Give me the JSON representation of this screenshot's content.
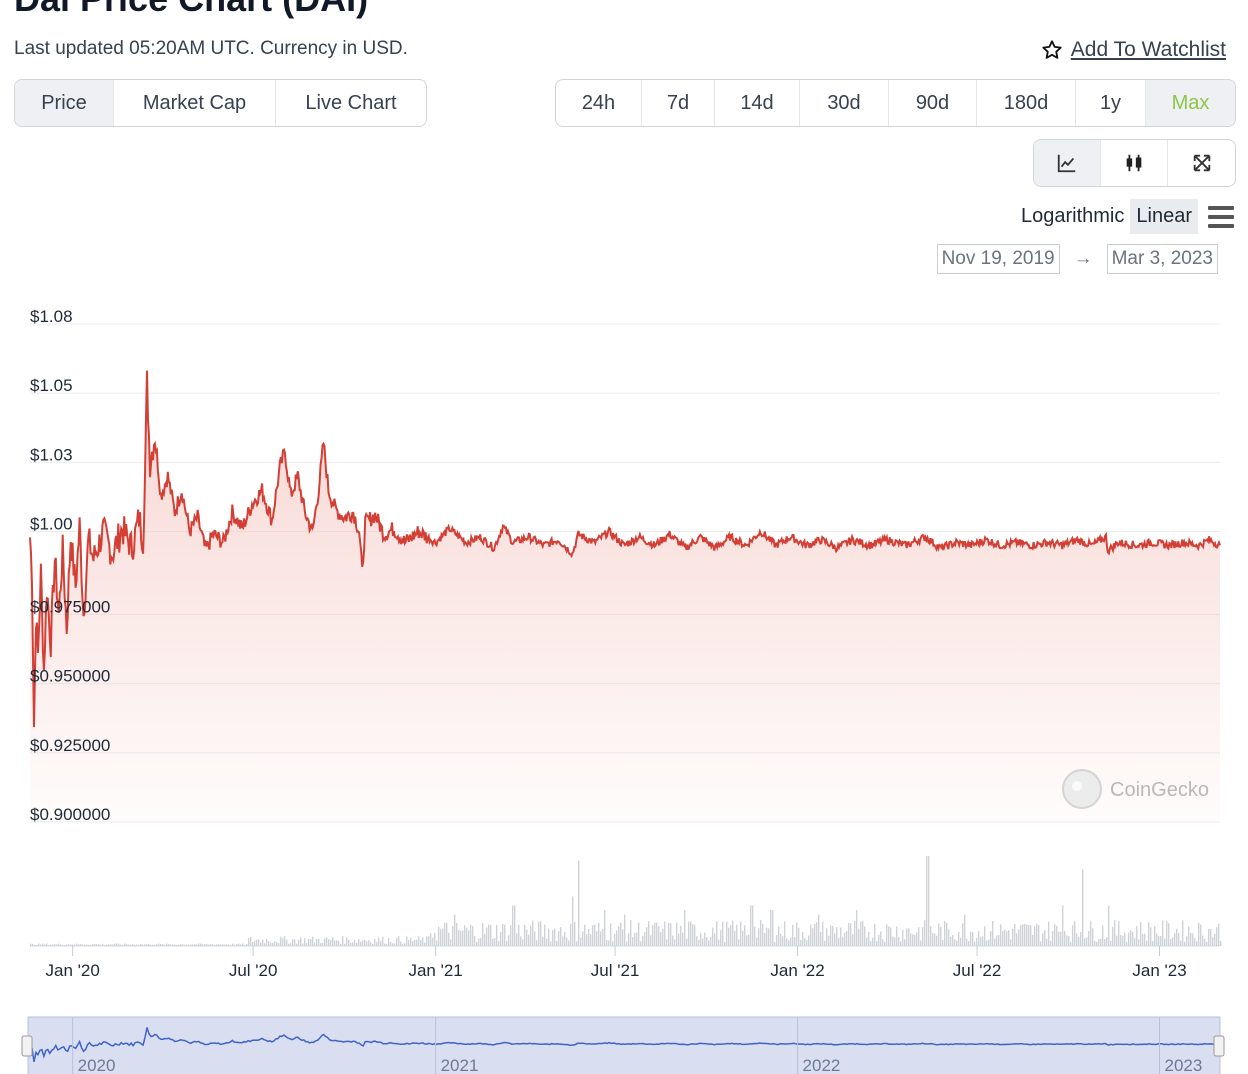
{
  "header": {
    "title": "Dai Price Chart (DAI)",
    "updated": "Last updated 05:20AM UTC. Currency in USD.",
    "watchlist_label": "Add To Watchlist"
  },
  "tabs": [
    {
      "label": "Price",
      "active": true
    },
    {
      "label": "Market Cap",
      "active": false
    },
    {
      "label": "Live Chart",
      "active": false
    }
  ],
  "ranges": [
    "24h",
    "7d",
    "14d",
    "30d",
    "90d",
    "180d",
    "1y",
    "Max"
  ],
  "active_range": "Max",
  "chart_types": [
    {
      "icon": "line-chart-icon",
      "active": true
    },
    {
      "icon": "candlestick-icon",
      "active": false
    },
    {
      "icon": "expand-icon",
      "active": false
    }
  ],
  "scale": {
    "logarithmic": "Logarithmic",
    "linear": "Linear",
    "active": "Linear"
  },
  "date_range": {
    "from": "Nov 19, 2019",
    "to": "Mar 3, 2023"
  },
  "watermark": "CoinGecko",
  "colors": {
    "price_line": "#d43f35",
    "area_fill": "#f4c7c2",
    "volume": "#cfd3d8",
    "navigator_line": "#3f63c9",
    "navigator_bg": "#d9dff0",
    "accent_max": "#8dc647"
  },
  "chart_data": {
    "type": "line",
    "title": "",
    "xlabel": "",
    "ylabel": "",
    "ylim": [
      0.9,
      1.08
    ],
    "y_ticks": [
      {
        "value": 1.08,
        "label": "$1.08"
      },
      {
        "value": 1.055,
        "label": "$1.05"
      },
      {
        "value": 1.03,
        "label": "$1.03"
      },
      {
        "value": 1.005,
        "label": "$1.00"
      },
      {
        "value": 0.975,
        "label": "$0.975000"
      },
      {
        "value": 0.95,
        "label": "$0.950000"
      },
      {
        "value": 0.925,
        "label": "$0.925000"
      },
      {
        "value": 0.9,
        "label": "$0.900000"
      }
    ],
    "x_range": [
      "2019-11-19",
      "2023-03-03"
    ],
    "x_ticks": [
      {
        "date": "2020-01-01",
        "label": "Jan '20"
      },
      {
        "date": "2020-07-01",
        "label": "Jul '20"
      },
      {
        "date": "2021-01-01",
        "label": "Jan '21"
      },
      {
        "date": "2021-07-01",
        "label": "Jul '21"
      },
      {
        "date": "2022-01-01",
        "label": "Jan '22"
      },
      {
        "date": "2022-07-01",
        "label": "Jul '22"
      },
      {
        "date": "2023-01-01",
        "label": "Jan '23"
      }
    ],
    "navigator_ticks": [
      {
        "date": "2020-01-01",
        "label": "2020"
      },
      {
        "date": "2021-01-01",
        "label": "2021"
      },
      {
        "date": "2022-01-01",
        "label": "2022"
      },
      {
        "date": "2023-01-01",
        "label": "2023"
      }
    ],
    "series": [
      {
        "name": "Price",
        "points": [
          [
            "2019-11-19",
            1.003
          ],
          [
            "2019-11-21",
            0.99
          ],
          [
            "2019-11-23",
            0.935
          ],
          [
            "2019-11-25",
            0.975
          ],
          [
            "2019-11-27",
            0.96
          ],
          [
            "2019-11-30",
            0.99
          ],
          [
            "2019-12-03",
            0.955
          ],
          [
            "2019-12-06",
            0.985
          ],
          [
            "2019-12-10",
            0.965
          ],
          [
            "2019-12-14",
            0.995
          ],
          [
            "2019-12-18",
            0.975
          ],
          [
            "2019-12-22",
            0.998
          ],
          [
            "2019-12-26",
            0.97
          ],
          [
            "2019-12-30",
            1.003
          ],
          [
            "2020-01-04",
            0.985
          ],
          [
            "2020-01-08",
            1.007
          ],
          [
            "2020-01-12",
            0.975
          ],
          [
            "2020-01-17",
            1.002
          ],
          [
            "2020-01-22",
            0.995
          ],
          [
            "2020-02-01",
            1.005
          ],
          [
            "2020-02-10",
            0.997
          ],
          [
            "2020-02-20",
            1.006
          ],
          [
            "2020-03-01",
            0.999
          ],
          [
            "2020-03-08",
            1.01
          ],
          [
            "2020-03-12",
            1.002
          ],
          [
            "2020-03-14",
            1.025
          ],
          [
            "2020-03-16",
            1.059
          ],
          [
            "2020-03-19",
            1.03
          ],
          [
            "2020-03-24",
            1.04
          ],
          [
            "2020-03-30",
            1.018
          ],
          [
            "2020-04-06",
            1.025
          ],
          [
            "2020-04-13",
            1.012
          ],
          [
            "2020-04-20",
            1.02
          ],
          [
            "2020-04-28",
            1.005
          ],
          [
            "2020-05-06",
            1.01
          ],
          [
            "2020-05-14",
            0.998
          ],
          [
            "2020-05-22",
            1.004
          ],
          [
            "2020-06-01",
            1.001
          ],
          [
            "2020-06-10",
            1.012
          ],
          [
            "2020-06-20",
            1.006
          ],
          [
            "2020-06-30",
            1.015
          ],
          [
            "2020-07-10",
            1.02
          ],
          [
            "2020-07-20",
            1.009
          ],
          [
            "2020-07-28",
            1.028
          ],
          [
            "2020-08-02",
            1.034
          ],
          [
            "2020-08-08",
            1.018
          ],
          [
            "2020-08-15",
            1.025
          ],
          [
            "2020-08-22",
            1.012
          ],
          [
            "2020-08-30",
            1.005
          ],
          [
            "2020-09-05",
            1.02
          ],
          [
            "2020-09-10",
            1.037
          ],
          [
            "2020-09-15",
            1.02
          ],
          [
            "2020-09-22",
            1.013
          ],
          [
            "2020-10-01",
            1.01
          ],
          [
            "2020-10-10",
            1.012
          ],
          [
            "2020-10-16",
            1.005
          ],
          [
            "2020-10-19",
            0.99
          ],
          [
            "2020-10-22",
            1.008
          ],
          [
            "2020-11-01",
            1.011
          ],
          [
            "2020-11-10",
            1.004
          ],
          [
            "2020-11-20",
            1.006
          ],
          [
            "2020-12-01",
            1.001
          ],
          [
            "2020-12-15",
            1.005
          ],
          [
            "2021-01-01",
            1.001
          ],
          [
            "2021-01-15",
            1.006
          ],
          [
            "2021-02-01",
            1.001
          ],
          [
            "2021-02-15",
            1.003
          ],
          [
            "2021-03-01",
            0.999
          ],
          [
            "2021-03-10",
            1.007
          ],
          [
            "2021-03-20",
            1.001
          ],
          [
            "2021-04-05",
            1.003
          ],
          [
            "2021-04-20",
            1.0
          ],
          [
            "2021-05-05",
            1.002
          ],
          [
            "2021-05-19",
            0.997
          ],
          [
            "2021-05-25",
            1.004
          ],
          [
            "2021-06-10",
            1.001
          ],
          [
            "2021-06-25",
            1.005
          ],
          [
            "2021-07-10",
            1.0
          ],
          [
            "2021-07-25",
            1.003
          ],
          [
            "2021-08-10",
            1.0
          ],
          [
            "2021-08-25",
            1.004
          ],
          [
            "2021-09-10",
            0.999
          ],
          [
            "2021-09-25",
            1.003
          ],
          [
            "2021-10-10",
            0.999
          ],
          [
            "2021-10-25",
            1.003
          ],
          [
            "2021-11-10",
            1.0
          ],
          [
            "2021-11-25",
            1.005
          ],
          [
            "2021-12-10",
            1.0
          ],
          [
            "2021-12-25",
            1.003
          ],
          [
            "2022-01-10",
            1.0
          ],
          [
            "2022-01-25",
            1.002
          ],
          [
            "2022-02-10",
            0.999
          ],
          [
            "2022-02-25",
            1.002
          ],
          [
            "2022-03-15",
            1.0
          ],
          [
            "2022-04-01",
            1.002
          ],
          [
            "2022-04-20",
            1.0
          ],
          [
            "2022-05-10",
            1.003
          ],
          [
            "2022-05-25",
            0.999
          ],
          [
            "2022-06-10",
            1.001
          ],
          [
            "2022-06-25",
            1.0
          ],
          [
            "2022-07-10",
            1.002
          ],
          [
            "2022-07-25",
            1.0
          ],
          [
            "2022-08-10",
            1.001
          ],
          [
            "2022-08-25",
            1.0
          ],
          [
            "2022-09-10",
            1.001
          ],
          [
            "2022-09-25",
            1.0
          ],
          [
            "2022-10-10",
            1.002
          ],
          [
            "2022-10-25",
            1.0
          ],
          [
            "2022-11-08",
            1.003
          ],
          [
            "2022-11-10",
            0.998
          ],
          [
            "2022-11-20",
            1.001
          ],
          [
            "2022-12-10",
            1.0
          ],
          [
            "2022-12-25",
            1.001
          ],
          [
            "2023-01-10",
            1.0
          ],
          [
            "2023-01-25",
            1.001
          ],
          [
            "2023-02-10",
            1.0
          ],
          [
            "2023-02-20",
            1.002
          ],
          [
            "2023-03-03",
            1.0
          ]
        ]
      },
      {
        "name": "Volume",
        "spikes": [
          [
            "2021-01-20",
            0.35
          ],
          [
            "2021-03-20",
            0.45
          ],
          [
            "2021-05-19",
            0.55
          ],
          [
            "2021-05-25",
            0.95
          ],
          [
            "2021-06-20",
            0.4
          ],
          [
            "2021-07-10",
            0.35
          ],
          [
            "2021-09-08",
            0.4
          ],
          [
            "2021-11-15",
            0.45
          ],
          [
            "2021-12-05",
            0.4
          ],
          [
            "2022-01-22",
            0.35
          ],
          [
            "2022-03-01",
            0.4
          ],
          [
            "2022-05-12",
            1.0
          ],
          [
            "2022-06-18",
            0.35
          ],
          [
            "2022-09-25",
            0.45
          ],
          [
            "2022-10-15",
            0.85
          ],
          [
            "2022-11-10",
            0.45
          ]
        ]
      }
    ]
  }
}
